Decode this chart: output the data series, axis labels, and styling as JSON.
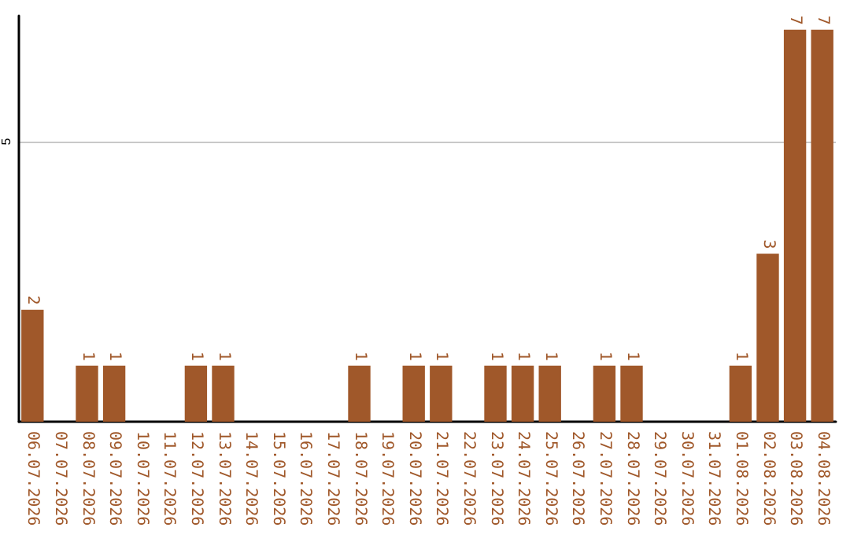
{
  "chart_data": {
    "type": "bar",
    "categories": [
      "06.07.2026",
      "07.07.2026",
      "08.07.2026",
      "09.07.2026",
      "10.07.2026",
      "11.07.2026",
      "12.07.2026",
      "13.07.2026",
      "14.07.2026",
      "15.07.2026",
      "16.07.2026",
      "17.07.2026",
      "18.07.2026",
      "19.07.2026",
      "20.07.2026",
      "21.07.2026",
      "22.07.2026",
      "23.07.2026",
      "24.07.2026",
      "25.07.2026",
      "26.07.2026",
      "27.07.2026",
      "28.07.2026",
      "29.07.2026",
      "30.07.2026",
      "31.07.2026",
      "01.08.2026",
      "02.08.2026",
      "03.08.2026",
      "04.08.2026"
    ],
    "values": [
      2,
      0,
      1,
      1,
      0,
      0,
      1,
      1,
      0,
      0,
      0,
      0,
      1,
      0,
      1,
      1,
      0,
      1,
      1,
      1,
      0,
      1,
      1,
      0,
      0,
      0,
      1,
      3,
      7,
      7
    ],
    "value_labels": [
      "2",
      null,
      "1",
      "1",
      null,
      null,
      "1",
      "1",
      null,
      null,
      null,
      null,
      "1",
      null,
      "1",
      "1",
      null,
      "1",
      "1",
      "1",
      null,
      "1",
      "1",
      null,
      null,
      null,
      "1",
      "3",
      "7",
      "7"
    ],
    "color": "#a0582a",
    "ylim": [
      0,
      7.25
    ],
    "yticks": [
      5
    ],
    "grid": "y"
  }
}
